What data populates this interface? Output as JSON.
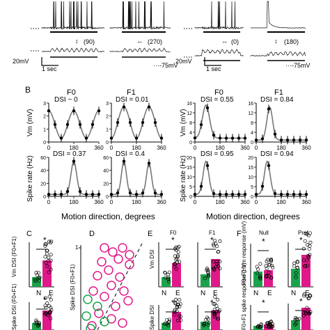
{
  "panel_a": {
    "left": {
      "dir1": "(90)",
      "dir2": "(270)",
      "scale_v": "20mV",
      "scale_t": "1 sec",
      "baseline": "-75mV"
    },
    "right": {
      "dir1": "(0)",
      "dir2": "(180)",
      "scale_v": "20mV",
      "scale_t": "1 sec",
      "baseline": "-75mV"
    }
  },
  "panel_b": {
    "label": "B",
    "xlabel": "Motion direction, degrees",
    "left_cell": {
      "col_titles": [
        "F0",
        "F1"
      ],
      "row_titles": [
        [
          "DSI ~ 0",
          "DSI = 0.01"
        ],
        [
          "DSI = 0.37",
          "DSI = 0.4"
        ]
      ],
      "ylabels": [
        "Vm (mV)",
        "Spike rate (Hz)"
      ],
      "vm_ticks": [
        "3",
        "2",
        "1",
        "0"
      ],
      "spike_ticks": [
        "60",
        "40",
        "20",
        "0"
      ],
      "x_ticks": [
        "0",
        "180",
        "360"
      ]
    },
    "right_cell": {
      "col_titles": [
        "F0",
        "F1"
      ],
      "row_titles": [
        [
          "DSI = 0.55",
          "DSI = 0.84"
        ],
        [
          "DSI = 0.95",
          "DSI = 0.94"
        ]
      ],
      "ylabels": [
        "Vm (mV)",
        "Spike rate (Hz)"
      ],
      "vm_ticks": [
        "16",
        "12",
        "8",
        "4",
        "0"
      ],
      "spike_ticks": [
        "20",
        "15",
        "10",
        "5",
        "0"
      ],
      "x_ticks": [
        "0",
        "180",
        "360"
      ]
    }
  },
  "panel_c": {
    "label": "C",
    "ylabel_top": "Vm DSI (F0+F1)",
    "ylabel_bottom": "Spike DSI (F0+F1)",
    "groups": [
      "N",
      "E"
    ],
    "sig": "*",
    "colors": {
      "N": "#1aa34a",
      "E": "#e0198a"
    }
  },
  "panel_d": {
    "label": "D",
    "ylabel": "Spike DSI (F0+F1)",
    "y_tick": "1"
  },
  "panel_e": {
    "label": "E",
    "subtitles": [
      "F0",
      "F1"
    ],
    "ylabel_top": "Vm DSI",
    "ylabel_bottom": "Spike DSI",
    "groups": [
      "N",
      "E"
    ],
    "sig": "*"
  },
  "panel_f": {
    "label": "F",
    "subtitles": [
      "Null",
      "Pref"
    ],
    "ylabel_top": "F0+F1 Vm response (mV)",
    "ylabel_bottom": "F0+F1 spike response (Hz)",
    "groups": [
      "N",
      "E"
    ],
    "sig": "*"
  }
}
